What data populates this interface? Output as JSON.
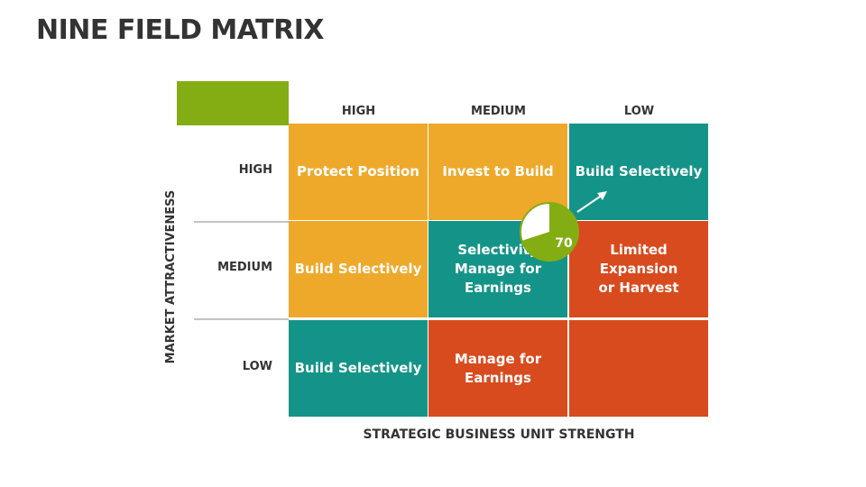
{
  "title": "NINE FIELD MATRIX",
  "column_headers": [
    "HIGH",
    "MEDIUM",
    "LOW"
  ],
  "row_headers": [
    "HIGH",
    "MEDIUM",
    "LOW"
  ],
  "x_axis_label": "STRATEGIC BUSINESS UNIT STRENGTH",
  "y_axis_label": "MARKET ATTRACTIVENESS",
  "cells": [
    [
      {
        "lines": [
          "Protect Position"
        ],
        "color": "#eea92b"
      },
      {
        "lines": [
          "Invest to Build"
        ],
        "color": "#eea92b"
      },
      {
        "lines": [
          "Build Selectively"
        ],
        "color": "#149488"
      }
    ],
    [
      {
        "lines": [
          "Build Selectively"
        ],
        "color": "#eea92b"
      },
      {
        "lines": [
          "Selectivity",
          "Manage for",
          "Earnings"
        ],
        "color": "#149488"
      },
      {
        "lines": [
          "Limited Expansion",
          "or Harvest"
        ],
        "color": "#d84b1e"
      }
    ],
    [
      {
        "lines": [
          "Build Selectively"
        ],
        "color": "#149488"
      },
      {
        "lines": [
          "Manage for",
          "Earnings"
        ],
        "color": "#d84b1e"
      },
      {
        "color": "#d84b1e"
      }
    ]
  ],
  "pie": {
    "value": 70,
    "color": "#84ad14"
  }
}
